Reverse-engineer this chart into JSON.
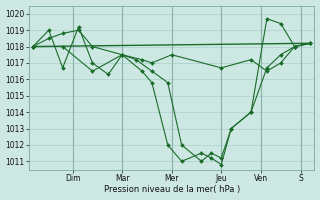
{
  "background_color": "#cde8e2",
  "grid_color": "#b0d4ce",
  "line_color": "#1a6b2a",
  "xlabel": "Pression niveau de la mer( hPa )",
  "ylim": [
    1010.5,
    1020.5
  ],
  "yticks": [
    1011,
    1012,
    1013,
    1014,
    1015,
    1016,
    1017,
    1018,
    1019,
    1020
  ],
  "day_labels": [
    "Dim",
    "Mar",
    "Mer",
    "Jeu",
    "Ven",
    "S"
  ],
  "day_x": [
    2.0,
    4.5,
    7.0,
    9.5,
    11.5,
    13.5
  ],
  "xlim": [
    -0.2,
    14.2
  ],
  "series_flat": {
    "x": [
      0.0,
      14.0
    ],
    "y": [
      1018.0,
      1018.2
    ]
  },
  "series_main": {
    "x": [
      0.0,
      0.8,
      1.5,
      2.3,
      3.0,
      3.8,
      4.5,
      5.2,
      6.0,
      6.8,
      7.5,
      8.5,
      9.0,
      9.5,
      10.0,
      11.0,
      11.8,
      12.5,
      13.2,
      14.0
    ],
    "y": [
      1018.0,
      1019.0,
      1016.7,
      1019.2,
      1017.0,
      1016.3,
      1017.5,
      1017.2,
      1016.5,
      1015.8,
      1012.0,
      1011.0,
      1011.5,
      1011.2,
      1013.0,
      1014.0,
      1016.7,
      1017.5,
      1018.0,
      1018.2
    ]
  },
  "series_upper": {
    "x": [
      0.0,
      0.8,
      1.5,
      2.3,
      3.0,
      4.5,
      5.5,
      6.0,
      7.0,
      9.5,
      11.0,
      11.8,
      12.5,
      13.2,
      14.0
    ],
    "y": [
      1018.0,
      1018.5,
      1018.8,
      1019.0,
      1018.0,
      1017.5,
      1017.2,
      1017.0,
      1017.5,
      1016.7,
      1017.2,
      1016.5,
      1017.0,
      1018.0,
      1018.2
    ]
  },
  "series_deep": {
    "x": [
      0.0,
      1.5,
      3.0,
      4.5,
      5.5,
      6.0,
      6.8,
      7.5,
      8.5,
      9.0,
      9.5,
      10.0,
      11.0,
      11.8,
      12.5,
      13.2,
      14.0
    ],
    "y": [
      1018.0,
      1018.0,
      1016.5,
      1017.5,
      1016.5,
      1015.8,
      1012.0,
      1011.0,
      1011.5,
      1011.2,
      1010.8,
      1013.0,
      1014.0,
      1019.7,
      1019.4,
      1018.0,
      1018.2
    ]
  }
}
